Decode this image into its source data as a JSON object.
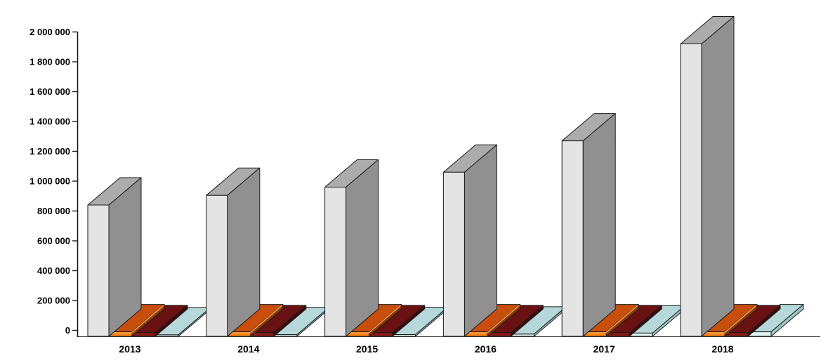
{
  "app": {
    "background_color": "#FFFFFF"
  },
  "chart_data": {
    "type": "bar",
    "projection": "3d-clustered-column",
    "title": "",
    "xlabel": "",
    "ylabel": "",
    "ylim": [
      0,
      2000000
    ],
    "ytick_interval": 200000,
    "ytick_labels": [
      "0",
      "200 000",
      "400 000",
      "600 000",
      "800 000",
      "1 000 000",
      "1 200 000",
      "1 400 000",
      "1 600 000",
      "1 800 000",
      "2 000 000"
    ],
    "grid": false,
    "legend": "none",
    "categories": [
      "2013",
      "2014",
      "2015",
      "2016",
      "2017",
      "2018"
    ],
    "series": [
      {
        "name": "gray-total",
        "color_front": "#E4E4E4",
        "color_top": "#ACACAC",
        "color_side": "#909090",
        "values": [
          880000,
          945000,
          1000000,
          1100000,
          1310000,
          1960000
        ]
      },
      {
        "name": "orange",
        "color_front": "#FF8414",
        "color_top": "#C84E0E",
        "color_side": "#8A3A0A",
        "color_highlight": "#FFA64F",
        "values": [
          30000,
          30000,
          30000,
          30000,
          30000,
          30000
        ]
      },
      {
        "name": "dark-red",
        "color_front": "#8A1B14",
        "color_top": "#691113",
        "color_side": "#400A0C",
        "values": [
          24000,
          24000,
          24000,
          24000,
          24000,
          24000
        ]
      },
      {
        "name": "light-blue",
        "color_front": "#E2F3F3",
        "color_top": "#B7D8DA",
        "color_side": "#9EC3C5",
        "values": [
          10000,
          11000,
          12000,
          15000,
          22000,
          30000
        ]
      }
    ],
    "axis_color": "#1A1A1A",
    "text_color": "#000000"
  }
}
